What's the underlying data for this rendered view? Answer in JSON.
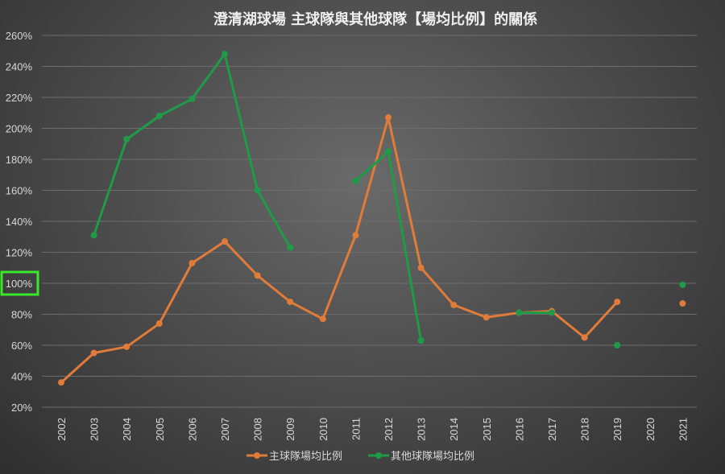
{
  "chart_data": {
    "type": "line",
    "title": "澄清湖球場 主球隊與其他球隊【場均比例】的關係",
    "xlabel": "",
    "ylabel": "",
    "categories": [
      "2002",
      "2003",
      "2004",
      "2005",
      "2006",
      "2007",
      "2008",
      "2009",
      "2010",
      "2011",
      "2012",
      "2013",
      "2014",
      "2015",
      "2016",
      "2017",
      "2018",
      "2019",
      "2020",
      "2021"
    ],
    "ylim": [
      20,
      260
    ],
    "yticks": [
      20,
      40,
      60,
      80,
      100,
      120,
      140,
      160,
      180,
      200,
      220,
      240,
      260
    ],
    "ytick_labels": [
      "20%",
      "40%",
      "60%",
      "80%",
      "100%",
      "120%",
      "140%",
      "160%",
      "180%",
      "200%",
      "220%",
      "240%",
      "260%"
    ],
    "grid": true,
    "legend_position": "bottom",
    "highlighted_tick": "100%",
    "highlight_color": "#39e82a",
    "series": [
      {
        "name": "主球隊場均比例",
        "color": "#e07b39",
        "values": [
          36,
          55,
          59,
          74,
          113,
          127,
          105,
          88,
          77,
          131,
          207,
          110,
          86,
          78,
          81,
          82,
          65,
          88,
          null,
          87
        ]
      },
      {
        "name": "其他球隊場均比例",
        "color": "#1f9b48",
        "values": [
          null,
          131,
          193,
          208,
          219,
          248,
          160,
          123,
          null,
          166,
          185,
          63,
          null,
          null,
          81,
          81,
          null,
          60,
          null,
          99
        ]
      }
    ]
  }
}
